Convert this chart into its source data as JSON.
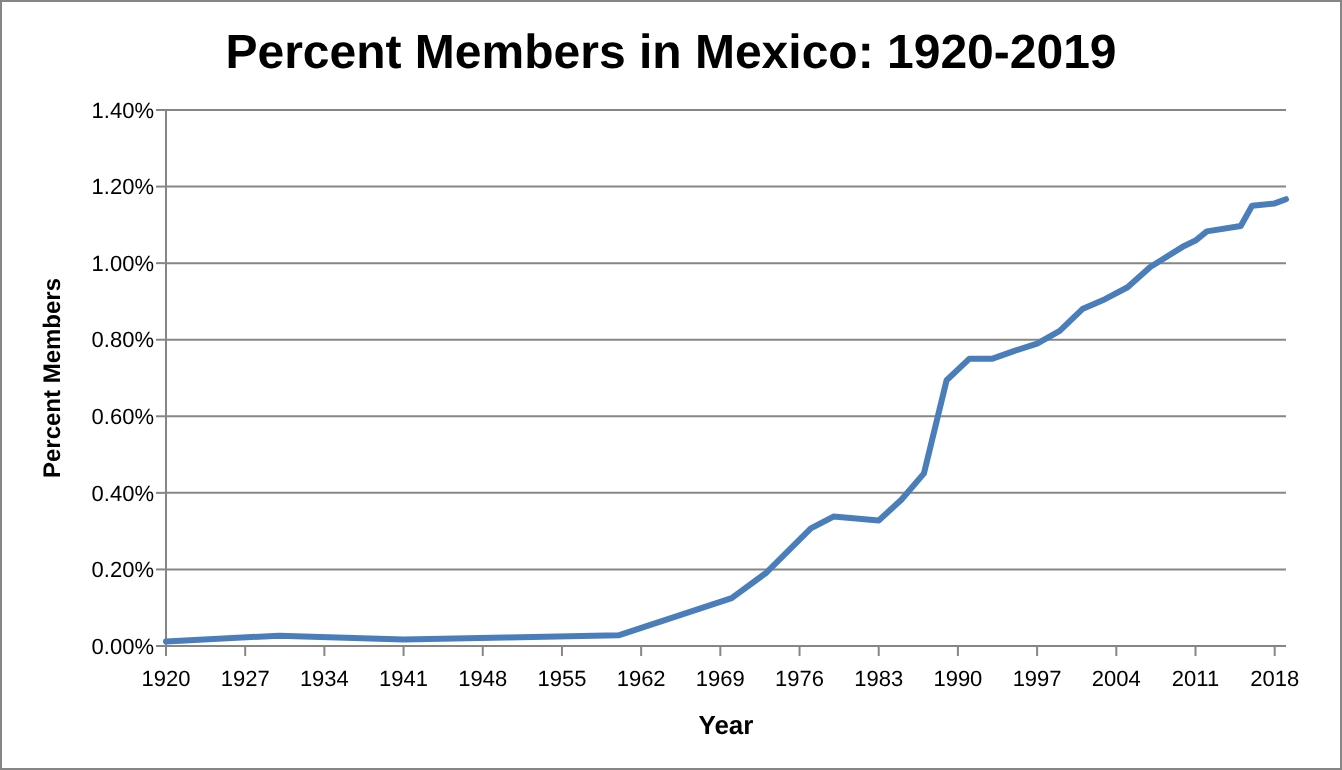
{
  "chart_data": {
    "type": "line",
    "title": "Percent Members in Mexico: 1920-2019",
    "xlabel": "Year",
    "ylabel": "Percent Members",
    "x": [
      1920,
      1930,
      1941,
      1950,
      1960,
      1970,
      1973,
      1977,
      1979,
      1983,
      1985,
      1987,
      1989,
      1991,
      1993,
      1995,
      1997,
      1999,
      2001,
      2003,
      2005,
      2007,
      2010,
      2011,
      2012,
      2015,
      2016,
      2018,
      2019
    ],
    "series": [
      {
        "color": "#4a7ebb",
        "values": [
          0.012,
          0.027,
          0.017,
          0.022,
          0.028,
          0.125,
          0.19,
          0.307,
          0.338,
          0.328,
          0.382,
          0.451,
          0.694,
          0.75,
          0.75,
          0.771,
          0.79,
          0.823,
          0.88,
          0.906,
          0.937,
          0.99,
          1.045,
          1.059,
          1.083,
          1.097,
          1.15,
          1.156,
          1.167
        ]
      }
    ],
    "xlim": [
      1920,
      2019
    ],
    "xticks": [
      1920,
      1927,
      1934,
      1941,
      1948,
      1955,
      1962,
      1969,
      1976,
      1983,
      1990,
      1997,
      2004,
      2011,
      2018
    ],
    "ylim": [
      0,
      1.4
    ],
    "yticks": [
      {
        "value": 0,
        "label": "0.00%"
      },
      {
        "value": 0.2,
        "label": "0.20%"
      },
      {
        "value": 0.4,
        "label": "0.40%"
      },
      {
        "value": 0.6,
        "label": "0.60%"
      },
      {
        "value": 0.8,
        "label": "0.80%"
      },
      {
        "value": 1.0,
        "label": "1.00%"
      },
      {
        "value": 1.2,
        "label": "1.20%"
      },
      {
        "value": 1.4,
        "label": "1.40%"
      }
    ],
    "grid": "y",
    "marker": "none",
    "line_style": "solid"
  }
}
